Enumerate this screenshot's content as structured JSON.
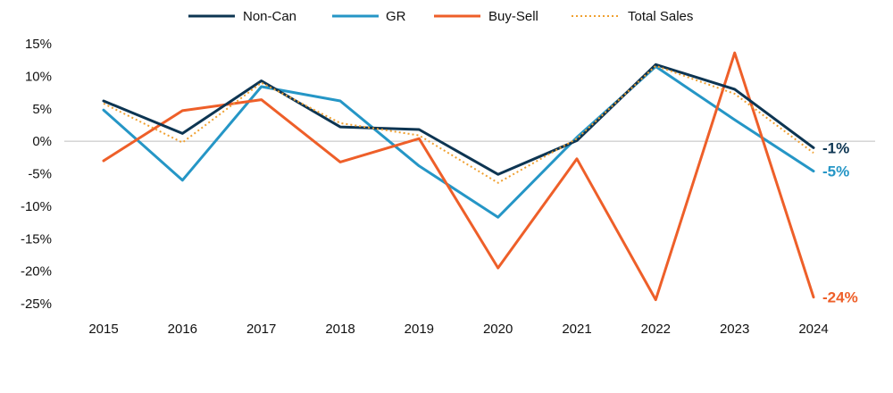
{
  "chart_data": {
    "type": "line",
    "title": "",
    "xlabel": "",
    "ylabel": "",
    "x": [
      "2015",
      "2016",
      "2017",
      "2018",
      "2019",
      "2020",
      "2021",
      "2022",
      "2023",
      "2024"
    ],
    "ylim": [
      -25,
      15
    ],
    "yticks": [
      15,
      10,
      5,
      0,
      -5,
      -10,
      -15,
      -20,
      -25
    ],
    "ytick_labels": [
      "15%",
      "10%",
      "5%",
      "0%",
      "-5%",
      "-10%",
      "-15%",
      "-20%",
      "-25%"
    ],
    "zero_line": true,
    "grid": false,
    "legend_position": "top-center",
    "series": [
      {
        "name": "Non-Can",
        "color": "#0d3552",
        "style": "solid",
        "values": [
          6.2,
          1.2,
          9.3,
          2.2,
          1.8,
          -5.1,
          0.1,
          11.8,
          8.0,
          -1.0
        ],
        "end_label": "-1%"
      },
      {
        "name": "GR",
        "color": "#2596c6",
        "style": "solid",
        "values": [
          4.8,
          -6.0,
          8.4,
          6.2,
          -3.8,
          -11.7,
          0.6,
          11.5,
          3.3,
          -4.6
        ],
        "end_label": "-5%"
      },
      {
        "name": "Buy-Sell",
        "color": "#ee5f29",
        "style": "solid",
        "values": [
          -3.0,
          4.7,
          6.4,
          -3.2,
          0.4,
          -19.5,
          -2.7,
          -24.4,
          13.6,
          -24.0
        ],
        "end_label": "-24%"
      },
      {
        "name": "Total Sales",
        "color": "#f0a030",
        "style": "dotted",
        "values": [
          5.8,
          -0.2,
          9.0,
          2.8,
          0.9,
          -6.4,
          0.4,
          11.6,
          7.3,
          -1.8
        ],
        "end_label": ""
      }
    ]
  }
}
